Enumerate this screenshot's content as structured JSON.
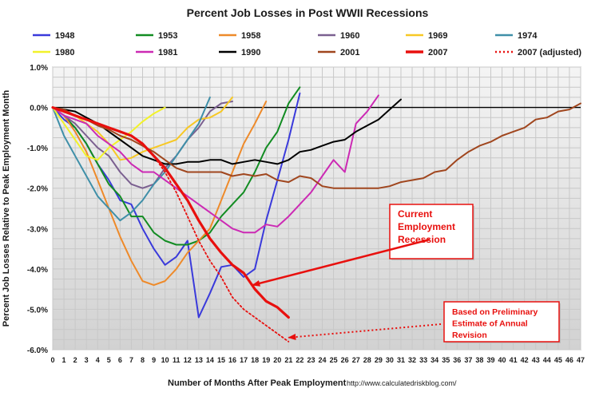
{
  "chart_data": {
    "type": "line",
    "title": "Percent Job Losses in Post WWII Recessions",
    "xlabel": "Number of Months After Peak Employment",
    "ylabel": "Percent Job Losses Relative to Peak Employment Month",
    "source": "http://www.calculatedriskblog.com/",
    "xlim": [
      0,
      47
    ],
    "ylim": [
      -6.0,
      1.0
    ],
    "x_ticks": [
      "0",
      "1",
      "2",
      "3",
      "4",
      "5",
      "6",
      "7",
      "8",
      "9",
      "10",
      "11",
      "12",
      "13",
      "14",
      "15",
      "16",
      "17",
      "18",
      "19",
      "20",
      "21",
      "22",
      "23",
      "24",
      "25",
      "26",
      "27",
      "28",
      "29",
      "30",
      "31",
      "32",
      "33",
      "34",
      "35",
      "36",
      "37",
      "38",
      "39",
      "40",
      "41",
      "42",
      "43",
      "44",
      "45",
      "46",
      "47"
    ],
    "y_ticks": [
      "1.0%",
      "0.0%",
      "-1.0%",
      "-2.0%",
      "-3.0%",
      "-4.0%",
      "-5.0%",
      "-6.0%"
    ],
    "grid": true,
    "legend_position": "top",
    "series": [
      {
        "name": "1948",
        "color": "#3a3adb",
        "values": [
          0,
          -0.3,
          -0.5,
          -0.9,
          -1.4,
          -1.8,
          -2.3,
          -2.4,
          -3.0,
          -3.5,
          -3.9,
          -3.7,
          -3.3,
          -5.2,
          -4.6,
          -3.95,
          -3.9,
          -4.2,
          -4.0,
          -2.8,
          -1.8,
          -0.8,
          0.35
        ]
      },
      {
        "name": "1953",
        "color": "#128c22",
        "values": [
          0,
          -0.2,
          -0.5,
          -0.9,
          -1.4,
          -1.9,
          -2.2,
          -2.7,
          -2.7,
          -3.1,
          -3.3,
          -3.4,
          -3.4,
          -3.3,
          -3.1,
          -2.7,
          -2.4,
          -2.1,
          -1.6,
          -1.0,
          -0.6,
          0.1,
          0.5
        ]
      },
      {
        "name": "1958",
        "color": "#ee8a2a",
        "values": [
          0,
          -0.2,
          -0.6,
          -1.1,
          -1.8,
          -2.5,
          -3.2,
          -3.8,
          -4.3,
          -4.4,
          -4.3,
          -4.0,
          -3.6,
          -3.3,
          -3.0,
          -2.3,
          -1.6,
          -0.9,
          -0.4,
          0.15
        ]
      },
      {
        "name": "1960",
        "color": "#7b6090",
        "values": [
          0,
          -0.2,
          -0.4,
          -0.7,
          -1.0,
          -1.2,
          -1.6,
          -1.9,
          -2.0,
          -1.9,
          -1.5,
          -1.2,
          -0.8,
          -0.5,
          -0.1,
          0.1,
          0.15
        ]
      },
      {
        "name": "1969",
        "color": "#f7c824",
        "values": [
          0,
          -0.1,
          -0.2,
          -0.4,
          -0.6,
          -0.9,
          -1.3,
          -1.25,
          -1.1,
          -1.0,
          -0.9,
          -0.8,
          -0.5,
          -0.3,
          -0.25,
          -0.1,
          0.25
        ]
      },
      {
        "name": "1974",
        "color": "#3f8fa8",
        "values": [
          0,
          -0.7,
          -1.2,
          -1.7,
          -2.2,
          -2.5,
          -2.8,
          -2.6,
          -2.3,
          -1.9,
          -1.6,
          -1.2,
          -0.8,
          -0.4,
          0.25
        ]
      },
      {
        "name": "1980",
        "color": "#f2f22a",
        "values": [
          0,
          -0.4,
          -0.8,
          -1.2,
          -1.3,
          -1.0,
          -0.8,
          -0.6,
          -0.35,
          -0.15,
          0.0
        ]
      },
      {
        "name": "1981",
        "color": "#cc2ab4",
        "values": [
          0,
          -0.2,
          -0.3,
          -0.4,
          -0.7,
          -0.9,
          -1.1,
          -1.4,
          -1.6,
          -1.6,
          -1.8,
          -2.0,
          -2.2,
          -2.4,
          -2.6,
          -2.8,
          -3.0,
          -3.1,
          -3.1,
          -2.9,
          -2.95,
          -2.7,
          -2.4,
          -2.1,
          -1.7,
          -1.3,
          -1.6,
          -0.4,
          -0.1,
          0.3
        ]
      },
      {
        "name": "1990",
        "color": "#000000",
        "values": [
          0,
          -0.05,
          -0.1,
          -0.25,
          -0.4,
          -0.6,
          -0.8,
          -1.0,
          -1.2,
          -1.3,
          -1.4,
          -1.4,
          -1.35,
          -1.35,
          -1.3,
          -1.3,
          -1.4,
          -1.35,
          -1.3,
          -1.35,
          -1.4,
          -1.3,
          -1.1,
          -1.05,
          -0.95,
          -0.85,
          -0.8,
          -0.6,
          -0.45,
          -0.3,
          -0.05,
          0.2
        ]
      },
      {
        "name": "2001",
        "color": "#a0461e",
        "values": [
          0,
          -0.05,
          -0.2,
          -0.3,
          -0.45,
          -0.55,
          -0.7,
          -0.8,
          -0.95,
          -1.1,
          -1.3,
          -1.5,
          -1.6,
          -1.6,
          -1.6,
          -1.6,
          -1.7,
          -1.65,
          -1.7,
          -1.65,
          -1.8,
          -1.85,
          -1.7,
          -1.75,
          -1.95,
          -2.0,
          -2.0,
          -2.0,
          -2.0,
          -2.0,
          -1.95,
          -1.85,
          -1.8,
          -1.75,
          -1.6,
          -1.55,
          -1.3,
          -1.1,
          -0.95,
          -0.85,
          -0.7,
          -0.6,
          -0.5,
          -0.3,
          -0.25,
          -0.1,
          -0.05,
          0.1
        ]
      },
      {
        "name": "2007",
        "color": "#e8100e",
        "values": [
          0,
          -0.1,
          -0.2,
          -0.3,
          -0.4,
          -0.5,
          -0.6,
          -0.7,
          -0.9,
          -1.2,
          -1.5,
          -1.9,
          -2.3,
          -2.8,
          -3.25,
          -3.6,
          -3.9,
          -4.1,
          -4.5,
          -4.8,
          -4.95,
          -5.2
        ]
      },
      {
        "name": "2007 (adjusted)",
        "color": "#e8100e",
        "values": [
          0,
          -0.1,
          -0.2,
          -0.3,
          -0.4,
          -0.5,
          -0.6,
          -0.7,
          -0.9,
          -1.2,
          -1.6,
          -2.1,
          -2.7,
          -3.3,
          -3.8,
          -4.2,
          -4.7,
          -5.0,
          -5.2,
          -5.4,
          -5.6,
          -5.8
        ]
      }
    ],
    "annotations": [
      {
        "id": "current",
        "lines": [
          "Current",
          "Employment",
          "Recession"
        ],
        "target_x": 17.8,
        "target_y": -4.4
      },
      {
        "id": "prelim",
        "lines": [
          "Based on Preliminary",
          "Estimate of  Annual",
          "Revision"
        ],
        "target_x": 21.0,
        "target_y": -5.7
      }
    ]
  }
}
